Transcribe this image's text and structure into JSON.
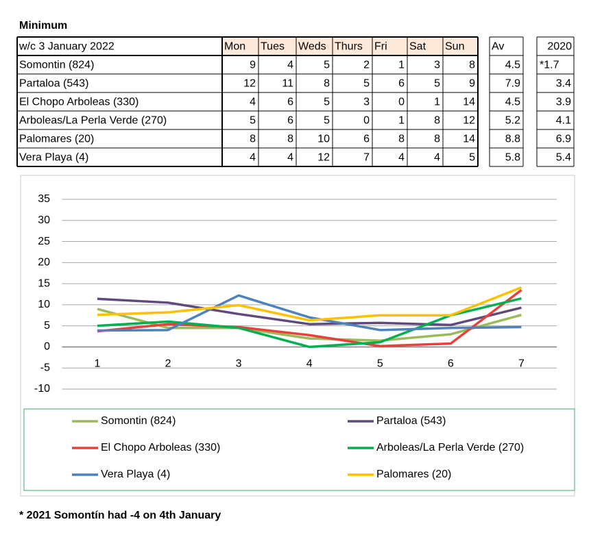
{
  "title": "Minimum",
  "table": {
    "header": [
      "w/c 3 January 2022",
      "Mon",
      "Tues",
      "Weds",
      "Thurs",
      "Fri",
      "Sat",
      "Sun",
      "Av",
      "2020"
    ],
    "rows": [
      [
        "Somontin (824)",
        9,
        4,
        5,
        2,
        1,
        3,
        8,
        4.5,
        "*1.7"
      ],
      [
        "Partaloa (543)",
        12,
        11,
        8,
        5,
        6,
        5,
        9,
        7.9,
        3.4
      ],
      [
        "El Chopo Arboleas (330)",
        4,
        6,
        5,
        3,
        0,
        1,
        14,
        4.5,
        3.9
      ],
      [
        "Arboleas/La Perla Verde (270)",
        5,
        6,
        5,
        0,
        1,
        8,
        12,
        5.2,
        4.1
      ],
      [
        "Palomares (20)",
        8,
        8,
        10,
        6,
        8,
        8,
        14,
        8.8,
        6.9
      ],
      [
        "Vera Playa (4)",
        4,
        4,
        12,
        7,
        4,
        4,
        5,
        5.8,
        5.4
      ]
    ]
  },
  "chart_data": {
    "type": "line",
    "categories": [
      1,
      2,
      3,
      4,
      5,
      6,
      7
    ],
    "series": [
      {
        "name": "Somontin (824)",
        "color": "#9bbb59",
        "values": [
          9,
          4.5,
          4.5,
          2,
          1.5,
          3,
          7.6
        ]
      },
      {
        "name": "Partaloa (543)",
        "color": "#604a7b",
        "values": [
          11.4,
          10.5,
          7.8,
          5.4,
          5.7,
          5.2,
          9.3
        ]
      },
      {
        "name": "El Chopo Arboleas (330)",
        "color": "#e8403a",
        "values": [
          3.7,
          5.4,
          4.7,
          2.8,
          0.2,
          0.8,
          13.5
        ]
      },
      {
        "name": "Arboleas/La Perla Verde (270)",
        "color": "#00b050",
        "values": [
          5,
          6,
          4.5,
          0,
          1.1,
          7.5,
          11.5
        ]
      },
      {
        "name": "Vera Playa (4)",
        "color": "#4f81bd",
        "values": [
          3.9,
          4,
          12.2,
          7,
          4,
          4.5,
          4.7
        ]
      },
      {
        "name": "Palomares (20)",
        "color": "#ffc000",
        "values": [
          7.6,
          8.2,
          9.9,
          6.3,
          7.5,
          7.5,
          14.1
        ]
      }
    ],
    "ylim": [
      -10,
      35
    ],
    "yticks": [
      -10,
      -5,
      0,
      5,
      10,
      15,
      20,
      25,
      30,
      35
    ],
    "grid": true
  },
  "footnote": "* 2021 Somontín had -4 on 4th January"
}
